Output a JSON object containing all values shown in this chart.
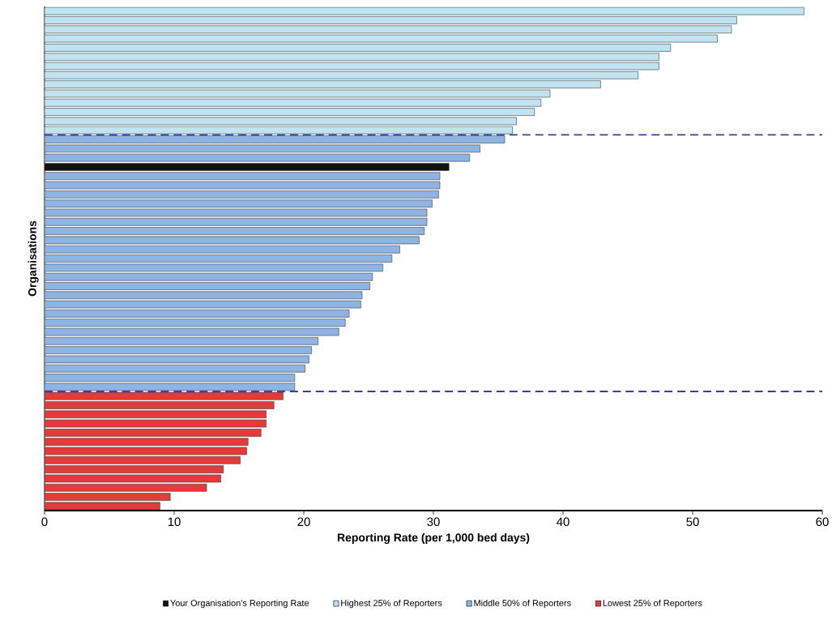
{
  "chart_data": {
    "type": "bar",
    "orientation": "horizontal",
    "xlabel": "Reporting Rate (per 1,000 bed days)",
    "ylabel": "Organisations",
    "categories": [
      null,
      null,
      null,
      null,
      null,
      null,
      null,
      null,
      null,
      null,
      null,
      null,
      null,
      null,
      null,
      null,
      null,
      null,
      null,
      null,
      null,
      null,
      null,
      null,
      null,
      null,
      null,
      null,
      null,
      null,
      null,
      null,
      null,
      null,
      null,
      null,
      null,
      null,
      null,
      null,
      null,
      null,
      null,
      null,
      null,
      null,
      null,
      null,
      null,
      null,
      null,
      null,
      null,
      null,
      null
    ],
    "series": [
      {
        "name": "Your Organisation's Reporting Rate",
        "color": "#111111",
        "values": [
          null,
          null,
          null,
          null,
          null,
          null,
          null,
          null,
          null,
          null,
          null,
          null,
          null,
          null,
          null,
          null,
          null,
          31.2,
          null,
          null,
          null,
          null,
          null,
          null,
          null,
          null,
          null,
          null,
          null,
          null,
          null,
          null,
          null,
          null,
          null,
          null,
          null,
          null,
          null,
          null,
          null,
          null,
          null,
          null,
          null,
          null,
          null,
          null,
          null,
          null,
          null,
          null,
          null,
          null,
          null
        ]
      },
      {
        "name": "Highest 25% of Reporters",
        "color": "#bfe3f0",
        "values": [
          58.6,
          53.4,
          53.0,
          51.9,
          48.3,
          47.4,
          47.4,
          45.8,
          42.9,
          39.0,
          38.3,
          37.8,
          36.4,
          36.1,
          null,
          null,
          null,
          null,
          null,
          null,
          null,
          null,
          null,
          null,
          null,
          null,
          null,
          null,
          null,
          null,
          null,
          null,
          null,
          null,
          null,
          null,
          null,
          null,
          null,
          null,
          null,
          null,
          null,
          null,
          null,
          null,
          null,
          null,
          null,
          null,
          null,
          null,
          null,
          null,
          null
        ]
      },
      {
        "name": "Middle 50% of Reporters",
        "color": "#8db4e2",
        "values": [
          null,
          null,
          null,
          null,
          null,
          null,
          null,
          null,
          null,
          null,
          null,
          null,
          null,
          null,
          35.5,
          33.6,
          32.8,
          null,
          30.5,
          30.5,
          30.4,
          29.9,
          29.5,
          29.5,
          29.3,
          28.9,
          27.4,
          26.8,
          26.1,
          25.3,
          25.1,
          24.5,
          24.4,
          23.5,
          23.2,
          22.7,
          21.1,
          20.6,
          20.4,
          20.1,
          19.3,
          19.3,
          null,
          null,
          null,
          null,
          null,
          null,
          null,
          null,
          null,
          null,
          null,
          null,
          null
        ]
      },
      {
        "name": "Lowest 25% of Reporters",
        "color": "#e53a3a",
        "values": [
          null,
          null,
          null,
          null,
          null,
          null,
          null,
          null,
          null,
          null,
          null,
          null,
          null,
          null,
          null,
          null,
          null,
          null,
          null,
          null,
          null,
          null,
          null,
          null,
          null,
          null,
          null,
          null,
          null,
          null,
          null,
          null,
          null,
          null,
          null,
          null,
          null,
          null,
          null,
          null,
          null,
          null,
          18.4,
          17.7,
          17.1,
          17.1,
          16.7,
          15.7,
          15.6,
          15.1,
          13.8,
          13.6,
          12.5,
          9.7,
          8.9
        ]
      }
    ],
    "xlim": [
      0,
      60
    ],
    "xticks": [
      0,
      10,
      20,
      30,
      40,
      50,
      60
    ],
    "tick_labels": "x",
    "legend": "bottom"
  }
}
